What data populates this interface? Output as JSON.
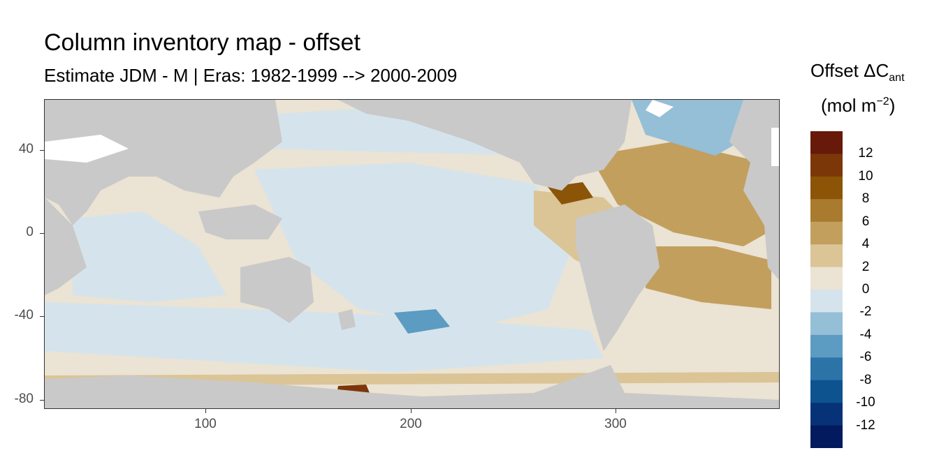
{
  "title": "Column inventory map - offset",
  "subtitle": "Estimate JDM - M | Eras: 1982-1999 --> 2000-2009",
  "legend": {
    "title_main": "Offset ΔC",
    "title_sub": "ant",
    "unit_pre": "(mol m",
    "unit_sup": "−2",
    "unit_post": ")",
    "labels": [
      "12",
      "10",
      "8",
      "6",
      "4",
      "2",
      "0",
      "-2",
      "-4",
      "-6",
      "-8",
      "-10",
      "-12"
    ],
    "colors": [
      "#67190a",
      "#7c3708",
      "#8c5407",
      "#a87b2e",
      "#c39f5e",
      "#dbc496",
      "#ebe3d3",
      "#d5e4ec",
      "#95bed7",
      "#5c9bc2",
      "#2c74a8",
      "#0d5390",
      "#063377",
      "#031a5f"
    ]
  },
  "axes": {
    "x_ticks": [
      "100",
      "200",
      "300"
    ],
    "y_ticks": [
      "40",
      "0",
      "-40",
      "-80"
    ]
  },
  "colors": {
    "land": "#c9c9c9",
    "missing": "#ffffff",
    "ocean_zero": "#ebe3d3"
  }
}
